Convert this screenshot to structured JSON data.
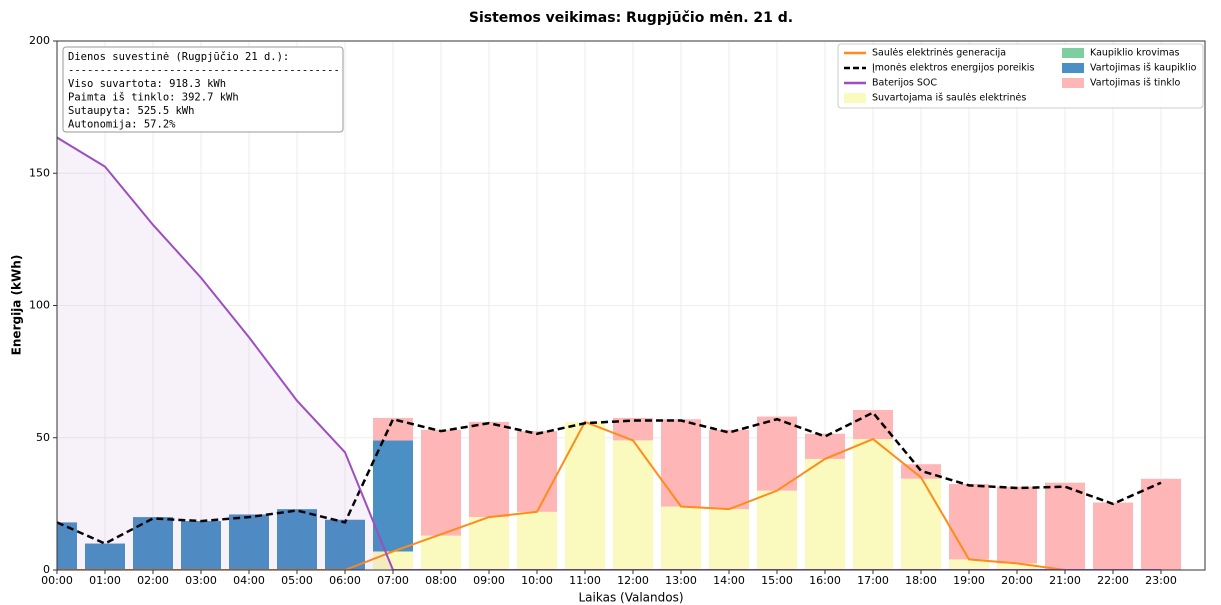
{
  "chart_data": {
    "type": "combo",
    "title": "Sistemos veikimas: Rugpjūčio mėn. 21 d.",
    "x_label": "Laikas (Valandos)",
    "y_label": "Energija (kWh)",
    "categories": [
      "00:00",
      "01:00",
      "02:00",
      "03:00",
      "04:00",
      "05:00",
      "06:00",
      "07:00",
      "08:00",
      "09:00",
      "10:00",
      "11:00",
      "12:00",
      "13:00",
      "14:00",
      "15:00",
      "16:00",
      "17:00",
      "18:00",
      "19:00",
      "20:00",
      "21:00",
      "22:00",
      "23:00"
    ],
    "ylim": [
      0,
      200
    ],
    "yticks": [
      0,
      50,
      100,
      150,
      200
    ],
    "grid": true,
    "legend": "upper right",
    "series": [
      {
        "name": "Saulės elektrinės generacija",
        "type": "line",
        "color": "#ff8c1a",
        "values": [
          0,
          0,
          0,
          0,
          0,
          0,
          0,
          7,
          13.5,
          20,
          22,
          56,
          49,
          24,
          23,
          30,
          42,
          49.5,
          35,
          4,
          2.5,
          0,
          0,
          0
        ]
      },
      {
        "name": "Įmonės elektros energijos poreikis",
        "type": "line",
        "dash": true,
        "color": "#000000",
        "values": [
          18,
          10,
          19.5,
          18.5,
          20,
          22.5,
          18,
          57,
          52.5,
          55.5,
          51.5,
          55.5,
          56.5,
          56.5,
          52,
          57,
          50.5,
          59.5,
          37.5,
          32,
          31,
          31.5,
          25,
          33
        ]
      },
      {
        "name": "Baterijos SOC",
        "type": "line",
        "fill": true,
        "color": "#9b4fc0",
        "values": [
          163.5,
          152.5,
          130.5,
          110.5,
          88,
          64,
          44.5,
          0,
          0,
          0,
          0,
          0,
          0,
          0,
          0,
          0,
          0,
          0,
          0,
          0,
          0,
          0,
          0,
          0
        ]
      },
      {
        "name": "Suvartojama iš saulės elektrinės",
        "type": "bar",
        "color": "#fafabe",
        "values": [
          0,
          0,
          0,
          0,
          0,
          0,
          0,
          7,
          13,
          20,
          22,
          56,
          49,
          24,
          23,
          30,
          42,
          49.5,
          34.5,
          4,
          2.5,
          0,
          0,
          0
        ]
      },
      {
        "name": "Kaupiklio krovimas",
        "type": "bar",
        "color": "#7dcfa0",
        "values": [
          0,
          0,
          0,
          0,
          0,
          0,
          0,
          0,
          0,
          0,
          0,
          0,
          0,
          0,
          0,
          0,
          0,
          0,
          0,
          0,
          0,
          0,
          0,
          0
        ]
      },
      {
        "name": "Vartojimas iš kaupiklio",
        "type": "bar",
        "color": "#4a90c4",
        "values": [
          18,
          10,
          20,
          18.5,
          21,
          23,
          19,
          42,
          0,
          0,
          0,
          0,
          0,
          0,
          0,
          0,
          0,
          0,
          0,
          0,
          0,
          0,
          0,
          0
        ]
      },
      {
        "name": "Vartojimas iš tinklo",
        "type": "bar",
        "color": "#ffb6b6",
        "values": [
          0,
          0,
          0,
          0,
          0,
          0,
          0,
          8.5,
          40,
          36,
          30.5,
          0,
          8.5,
          33,
          30,
          28,
          9.5,
          11,
          5.5,
          28.5,
          29,
          33,
          25.5,
          34.5
        ]
      }
    ],
    "summary": [
      "Dienos suvestinė (Rugpjūčio 21 d.):",
      "-------------------------------------------",
      "Viso suvartota: 918.3 kWh",
      "Paimta iš tinklo: 392.7 kWh",
      "Sutaupyta: 525.5 kWh",
      "Autonomija: 57.2%"
    ]
  }
}
